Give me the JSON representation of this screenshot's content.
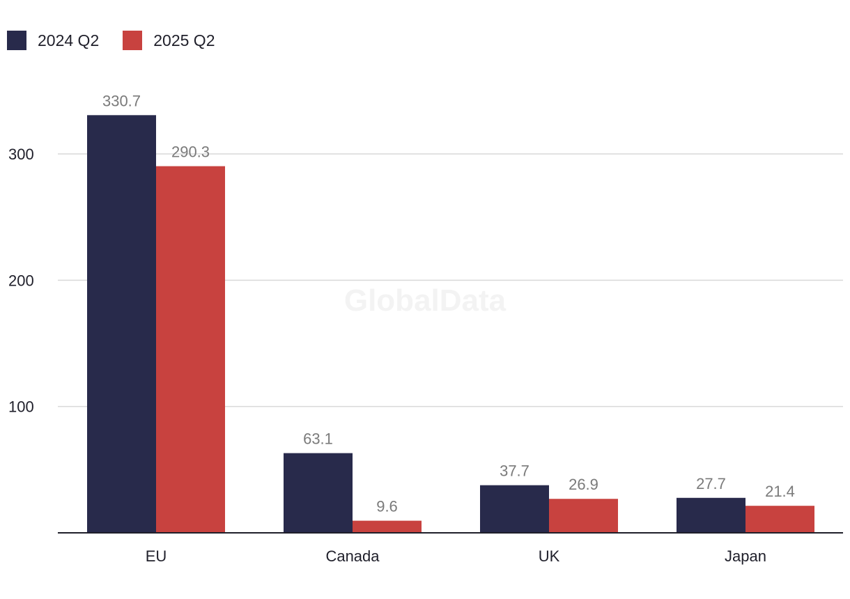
{
  "chart_data": {
    "type": "bar",
    "title": "",
    "xlabel": "",
    "ylabel": "",
    "categories": [
      "EU",
      "Canada",
      "UK",
      "Japan"
    ],
    "series": [
      {
        "name": "2024 Q2",
        "color": "#282a4b",
        "values": [
          330.7,
          63.1,
          37.7,
          27.7
        ]
      },
      {
        "name": "2025 Q2",
        "color": "#c8423f",
        "values": [
          290.3,
          9.6,
          26.9,
          21.4
        ]
      }
    ],
    "data_labels": [
      [
        "330.7",
        "63.1",
        "37.7",
        "27.7"
      ],
      [
        "290.3",
        "9.6",
        "26.9",
        "21.4"
      ]
    ],
    "yticks": [
      100,
      200,
      300
    ],
    "ylim": [
      0,
      360
    ],
    "grid": true,
    "legend": "top-left",
    "watermark": "GlobalData"
  }
}
